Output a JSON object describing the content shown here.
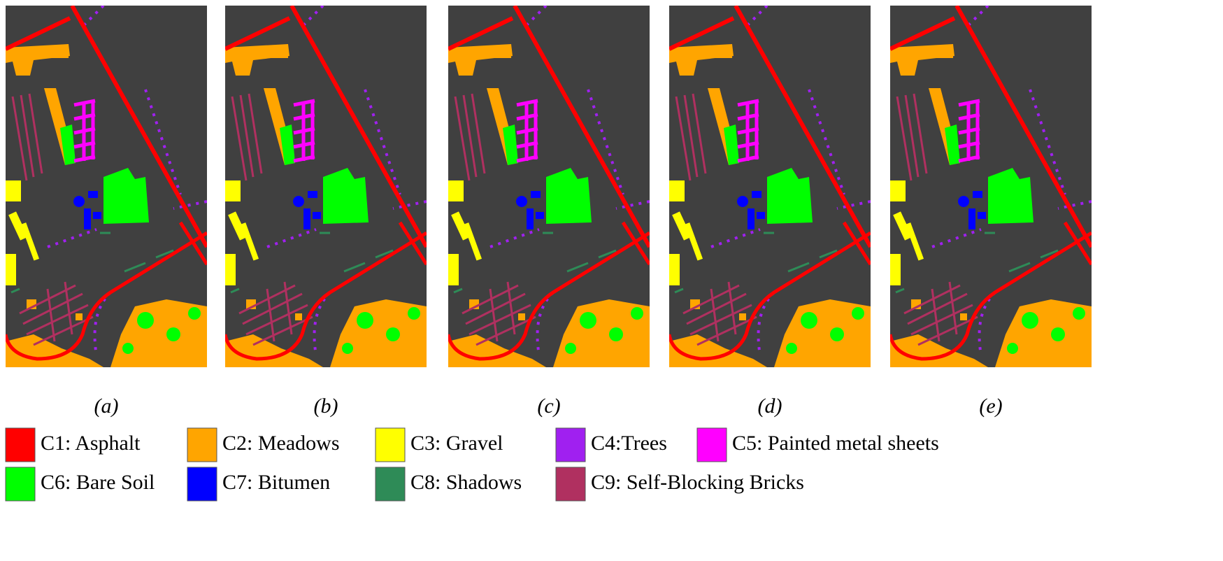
{
  "panels": [
    {
      "label": "(a)"
    },
    {
      "label": "(b)"
    },
    {
      "label": "(c)"
    },
    {
      "label": "(d)"
    },
    {
      "label": "(e)"
    }
  ],
  "legend": [
    {
      "label": "C1: Asphalt",
      "color": "#ff0000"
    },
    {
      "label": "C2: Meadows",
      "color": "#ffa500"
    },
    {
      "label": "C3: Gravel",
      "color": "#ffff00"
    },
    {
      "label": "C4:Trees",
      "color": "#a020f0"
    },
    {
      "label": "C5: Painted metal sheets",
      "color": "#ff00ff"
    },
    {
      "label": "C6: Bare Soil",
      "color": "#00ff00"
    },
    {
      "label": "C7: Bitumen",
      "color": "#0000ff"
    },
    {
      "label": "C8: Shadows",
      "color": "#2e8b57"
    },
    {
      "label": "C9: Self-Blocking Bricks",
      "color": "#b03060"
    }
  ]
}
